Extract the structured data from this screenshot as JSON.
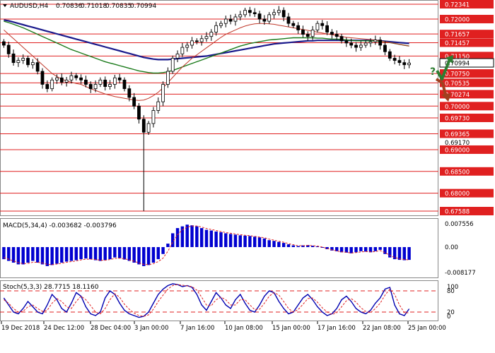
{
  "chart_data": {
    "type": "candlestick",
    "symbol_title": "AUDUSD,H4",
    "ohlc_header": [
      "0.70836",
      "0.71018",
      "0.70835",
      "0.70994"
    ],
    "price_axis": {
      "ylim": [
        0.67588,
        0.72341
      ],
      "levels": [
        {
          "value": 0.72341,
          "label": "0.72341",
          "type": "red"
        },
        {
          "value": 0.72,
          "label": "0.72000",
          "type": "red"
        },
        {
          "value": 0.71657,
          "label": "0.71657",
          "type": "red"
        },
        {
          "value": 0.71457,
          "label": "0.71457",
          "type": "red"
        },
        {
          "value": 0.7115,
          "label": "0.71150",
          "type": "red"
        },
        {
          "value": 0.70994,
          "label": "0.70994",
          "type": "current"
        },
        {
          "value": 0.7075,
          "label": "0.70750",
          "type": "red"
        },
        {
          "value": 0.70535,
          "label": "0.70535",
          "type": "red"
        },
        {
          "value": 0.70274,
          "label": "0.70274",
          "type": "red"
        },
        {
          "value": 0.7,
          "label": "0.70000",
          "type": "red"
        },
        {
          "value": 0.6973,
          "label": "0.69730",
          "type": "red"
        },
        {
          "value": 0.69365,
          "label": "0.69365",
          "type": "red"
        },
        {
          "value": 0.6917,
          "label": "0.69170",
          "type": "plain"
        },
        {
          "value": 0.69,
          "label": "0.69000",
          "type": "red"
        },
        {
          "value": 0.685,
          "label": "0.68500",
          "type": "red"
        },
        {
          "value": 0.68,
          "label": "0.68000",
          "type": "red"
        },
        {
          "value": 0.67588,
          "label": "0.67588",
          "type": "red"
        }
      ]
    },
    "candles_close": [
      0.714,
      0.712,
      0.71,
      0.7105,
      0.711,
      0.7095,
      0.71,
      0.708,
      0.705,
      0.704,
      0.706,
      0.7065,
      0.7055,
      0.706,
      0.707,
      0.7065,
      0.706,
      0.705,
      0.704,
      0.705,
      0.706,
      0.7045,
      0.705,
      0.7065,
      0.706,
      0.704,
      0.702,
      0.7,
      0.697,
      0.694,
      0.696,
      0.699,
      0.701,
      0.705,
      0.708,
      0.711,
      0.712,
      0.7135,
      0.714,
      0.715,
      0.7148,
      0.7155,
      0.716,
      0.717,
      0.7185,
      0.719,
      0.72,
      0.7195,
      0.7205,
      0.721,
      0.722,
      0.7215,
      0.7212,
      0.72,
      0.7195,
      0.721,
      0.7215,
      0.722,
      0.7205,
      0.719,
      0.7185,
      0.7175,
      0.7165,
      0.716,
      0.7175,
      0.719,
      0.7185,
      0.717,
      0.7165,
      0.716,
      0.715,
      0.7145,
      0.714,
      0.7135,
      0.714,
      0.7145,
      0.7148,
      0.7152,
      0.714,
      0.7125,
      0.711,
      0.7105,
      0.71,
      0.7095,
      0.7099
    ],
    "ma_fast": [
      0.7175,
      0.7165,
      0.7155,
      0.7145,
      0.7135,
      0.7125,
      0.7115,
      0.7105,
      0.7095,
      0.7085,
      0.7075,
      0.7068,
      0.7062,
      0.7058,
      0.7055,
      0.7052,
      0.705,
      0.7045,
      0.704,
      0.7036,
      0.7032,
      0.7028,
      0.7025,
      0.7022,
      0.702,
      0.7018,
      0.7016,
      0.7014,
      0.7013,
      0.7014,
      0.7018,
      0.7024,
      0.7032,
      0.7042,
      0.7054,
      0.7066,
      0.7078,
      0.709,
      0.71,
      0.711,
      0.7118,
      0.7126,
      0.7134,
      0.7142,
      0.715,
      0.7158,
      0.7165,
      0.717,
      0.7175,
      0.718,
      0.7184,
      0.7187,
      0.7189,
      0.719,
      0.719,
      0.7189,
      0.7188,
      0.7186,
      0.7184,
      0.7182,
      0.718,
      0.7178,
      0.7176,
      0.7174,
      0.7172,
      0.717,
      0.7168,
      0.7166,
      0.7164,
      0.7162,
      0.716,
      0.7158,
      0.7157,
      0.7156,
      0.7155,
      0.7154,
      0.7153,
      0.7152,
      0.715,
      0.7148,
      0.7146,
      0.7144,
      0.7142,
      0.714,
      0.7138
    ],
    "ma_mid": [
      0.7195,
      0.7192,
      0.7188,
      0.7184,
      0.718,
      0.7175,
      0.717,
      0.7165,
      0.716,
      0.7155,
      0.715,
      0.7145,
      0.714,
      0.7135,
      0.713,
      0.7126,
      0.7122,
      0.7118,
      0.7114,
      0.711,
      0.7106,
      0.7102,
      0.7099,
      0.7096,
      0.7093,
      0.709,
      0.7087,
      0.7084,
      0.7081,
      0.7079,
      0.7077,
      0.7076,
      0.7076,
      0.7077,
      0.7079,
      0.7082,
      0.7086,
      0.709,
      0.7094,
      0.7098,
      0.7102,
      0.7106,
      0.711,
      0.7114,
      0.7118,
      0.7122,
      0.7126,
      0.713,
      0.7134,
      0.7138,
      0.7141,
      0.7144,
      0.7146,
      0.7148,
      0.715,
      0.7152,
      0.7153,
      0.7154,
      0.7155,
      0.7156,
      0.7157,
      0.7157,
      0.7157,
      0.7157,
      0.7157,
      0.7156,
      0.7156,
      0.7155,
      0.7154,
      0.7154,
      0.7153,
      0.7152,
      0.7151,
      0.715,
      0.715,
      0.715,
      0.715,
      0.715,
      0.7149,
      0.7148,
      0.7146,
      0.7144,
      0.7142,
      0.714,
      0.7138
    ],
    "ma_slow": [
      0.7198,
      0.7196,
      0.7193,
      0.719,
      0.7187,
      0.7184,
      0.7181,
      0.7178,
      0.7175,
      0.7172,
      0.7169,
      0.7166,
      0.7163,
      0.716,
      0.7157,
      0.7154,
      0.7151,
      0.7148,
      0.7145,
      0.7142,
      0.7139,
      0.7136,
      0.7133,
      0.713,
      0.7127,
      0.7124,
      0.7121,
      0.7118,
      0.7115,
      0.7112,
      0.711,
      0.7108,
      0.7107,
      0.7107,
      0.7107,
      0.7108,
      0.7109,
      0.711,
      0.7111,
      0.7112,
      0.7113,
      0.7114,
      0.7115,
      0.7117,
      0.7119,
      0.7121,
      0.7123,
      0.7125,
      0.7127,
      0.7129,
      0.7131,
      0.7133,
      0.7135,
      0.7137,
      0.7139,
      0.7141,
      0.7143,
      0.7144,
      0.7145,
      0.7146,
      0.7147,
      0.7148,
      0.7149,
      0.715,
      0.715,
      0.7151,
      0.7151,
      0.7151,
      0.7151,
      0.7151,
      0.7151,
      0.7151,
      0.7151,
      0.7151,
      0.7151,
      0.7151,
      0.7151,
      0.7151,
      0.715,
      0.7149,
      0.7148,
      0.7147,
      0.7146,
      0.7145,
      0.7144
    ],
    "macd": {
      "title": "MACD(5,34,4) -0.003682 -0.003796",
      "ylim": [
        -0.008177,
        0.007556
      ],
      "axis_labels": [
        "0.007556",
        "0.00",
        "-0.008177"
      ],
      "values": [
        -0.0035,
        -0.004,
        -0.0045,
        -0.005,
        -0.005,
        -0.0045,
        -0.004,
        -0.0045,
        -0.005,
        -0.0055,
        -0.0052,
        -0.0048,
        -0.0045,
        -0.0042,
        -0.004,
        -0.0038,
        -0.0035,
        -0.0033,
        -0.0035,
        -0.0038,
        -0.004,
        -0.0038,
        -0.0035,
        -0.003,
        -0.0032,
        -0.0036,
        -0.004,
        -0.0045,
        -0.005,
        -0.0055,
        -0.0052,
        -0.0045,
        -0.0035,
        -0.002,
        0.001,
        0.004,
        0.0055,
        0.006,
        0.0065,
        0.0063,
        0.006,
        0.0055,
        0.005,
        0.0048,
        0.0045,
        0.0043,
        0.004,
        0.0038,
        0.0036,
        0.0034,
        0.0033,
        0.0032,
        0.003,
        0.0028,
        0.0025,
        0.002,
        0.0018,
        0.0015,
        0.0012,
        0.0008,
        0.0005,
        0.0003,
        0.0005,
        0.0006,
        0.0004,
        0.0002,
        -0.0002,
        -0.0006,
        -0.001,
        -0.0012,
        -0.0015,
        -0.0016,
        -0.0018,
        -0.0015,
        -0.0012,
        -0.0013,
        -0.0015,
        -0.0012,
        -0.0008,
        -0.002,
        -0.003,
        -0.0035,
        -0.0037,
        -0.0038,
        -0.0037
      ],
      "signal": [
        -0.003,
        -0.0035,
        -0.004,
        -0.0045,
        -0.0048,
        -0.0047,
        -0.0044,
        -0.0044,
        -0.0046,
        -0.005,
        -0.0051,
        -0.0049,
        -0.0047,
        -0.0044,
        -0.0042,
        -0.004,
        -0.0037,
        -0.0035,
        -0.0035,
        -0.0036,
        -0.0038,
        -0.0038,
        -0.0036,
        -0.0033,
        -0.0032,
        -0.0034,
        -0.0037,
        -0.0041,
        -0.0046,
        -0.005,
        -0.0051,
        -0.0048,
        -0.0042,
        -0.0032,
        -0.0012,
        0.0014,
        0.0036,
        0.005,
        0.0058,
        0.0061,
        0.0061,
        0.0058,
        0.0054,
        0.0051,
        0.0048,
        0.0045,
        0.0042,
        0.004,
        0.0038,
        0.0036,
        0.0034,
        0.0033,
        0.0031,
        0.0029,
        0.0027,
        0.0023,
        0.002,
        0.0017,
        0.0014,
        0.001,
        0.0007,
        0.0004,
        0.0004,
        0.0005,
        0.0004,
        0.0003,
        0.0,
        -0.0004,
        -0.0008,
        -0.0011,
        -0.0014,
        -0.0015,
        -0.0017,
        -0.0016,
        -0.0014,
        -0.0013,
        -0.0014,
        -0.0013,
        -0.001,
        -0.0016,
        -0.0024,
        -0.003,
        -0.0034,
        -0.0036,
        -0.0037
      ]
    },
    "stoch": {
      "title": "Stoch(5,3,3) 28.7715 18.1160",
      "ylim": [
        0,
        100
      ],
      "axis_labels": [
        "100",
        "80",
        "20",
        "0"
      ],
      "levels": [
        80,
        20
      ],
      "k": [
        60,
        40,
        20,
        15,
        30,
        50,
        35,
        20,
        15,
        40,
        70,
        55,
        30,
        20,
        45,
        75,
        65,
        35,
        15,
        10,
        20,
        60,
        80,
        70,
        45,
        25,
        15,
        10,
        5,
        8,
        20,
        45,
        70,
        85,
        95,
        100,
        98,
        92,
        95,
        90,
        70,
        40,
        25,
        50,
        75,
        60,
        40,
        30,
        55,
        70,
        45,
        25,
        20,
        40,
        65,
        80,
        75,
        50,
        30,
        15,
        20,
        40,
        60,
        70,
        55,
        35,
        20,
        10,
        15,
        30,
        55,
        65,
        50,
        30,
        20,
        15,
        25,
        45,
        60,
        85,
        90,
        40,
        15,
        10,
        29
      ],
      "d": [
        55,
        45,
        30,
        20,
        22,
        35,
        40,
        30,
        22,
        25,
        45,
        58,
        50,
        35,
        30,
        50,
        65,
        55,
        38,
        20,
        15,
        30,
        55,
        72,
        62,
        42,
        28,
        17,
        10,
        8,
        12,
        28,
        50,
        68,
        85,
        95,
        98,
        96,
        94,
        92,
        82,
        62,
        40,
        38,
        55,
        62,
        55,
        40,
        40,
        55,
        55,
        40,
        27,
        28,
        45,
        65,
        75,
        68,
        50,
        30,
        20,
        27,
        42,
        58,
        60,
        48,
        32,
        20,
        13,
        18,
        35,
        52,
        58,
        48,
        32,
        22,
        18,
        30,
        45,
        68,
        85,
        70,
        40,
        18,
        18
      ]
    },
    "time_axis": [
      "19 Dec 2018",
      "24 Dec 12:00",
      "28 Dec 04:00",
      "3 Jan 00:00",
      "7 Jan 16:00",
      "10 Jan 08:00",
      "15 Jan 00:00",
      "17 Jan 16:00",
      "22 Jan 08:00",
      "25 Jan 00:00"
    ],
    "annotations": {
      "question_mark": "?",
      "up_arrow_color": "#2e7d32",
      "down_arrow_color": "#a0401f"
    }
  },
  "colors": {
    "red_level": "#e02020",
    "candle": "#000000",
    "ma_fast": "#c0392b",
    "ma_mid": "#1a7a1a",
    "ma_slow": "#1a1a8c",
    "macd_bar": "#0000d0",
    "macd_signal": "#e02020",
    "stoch_k": "#0000b0",
    "stoch_d": "#e02020"
  }
}
